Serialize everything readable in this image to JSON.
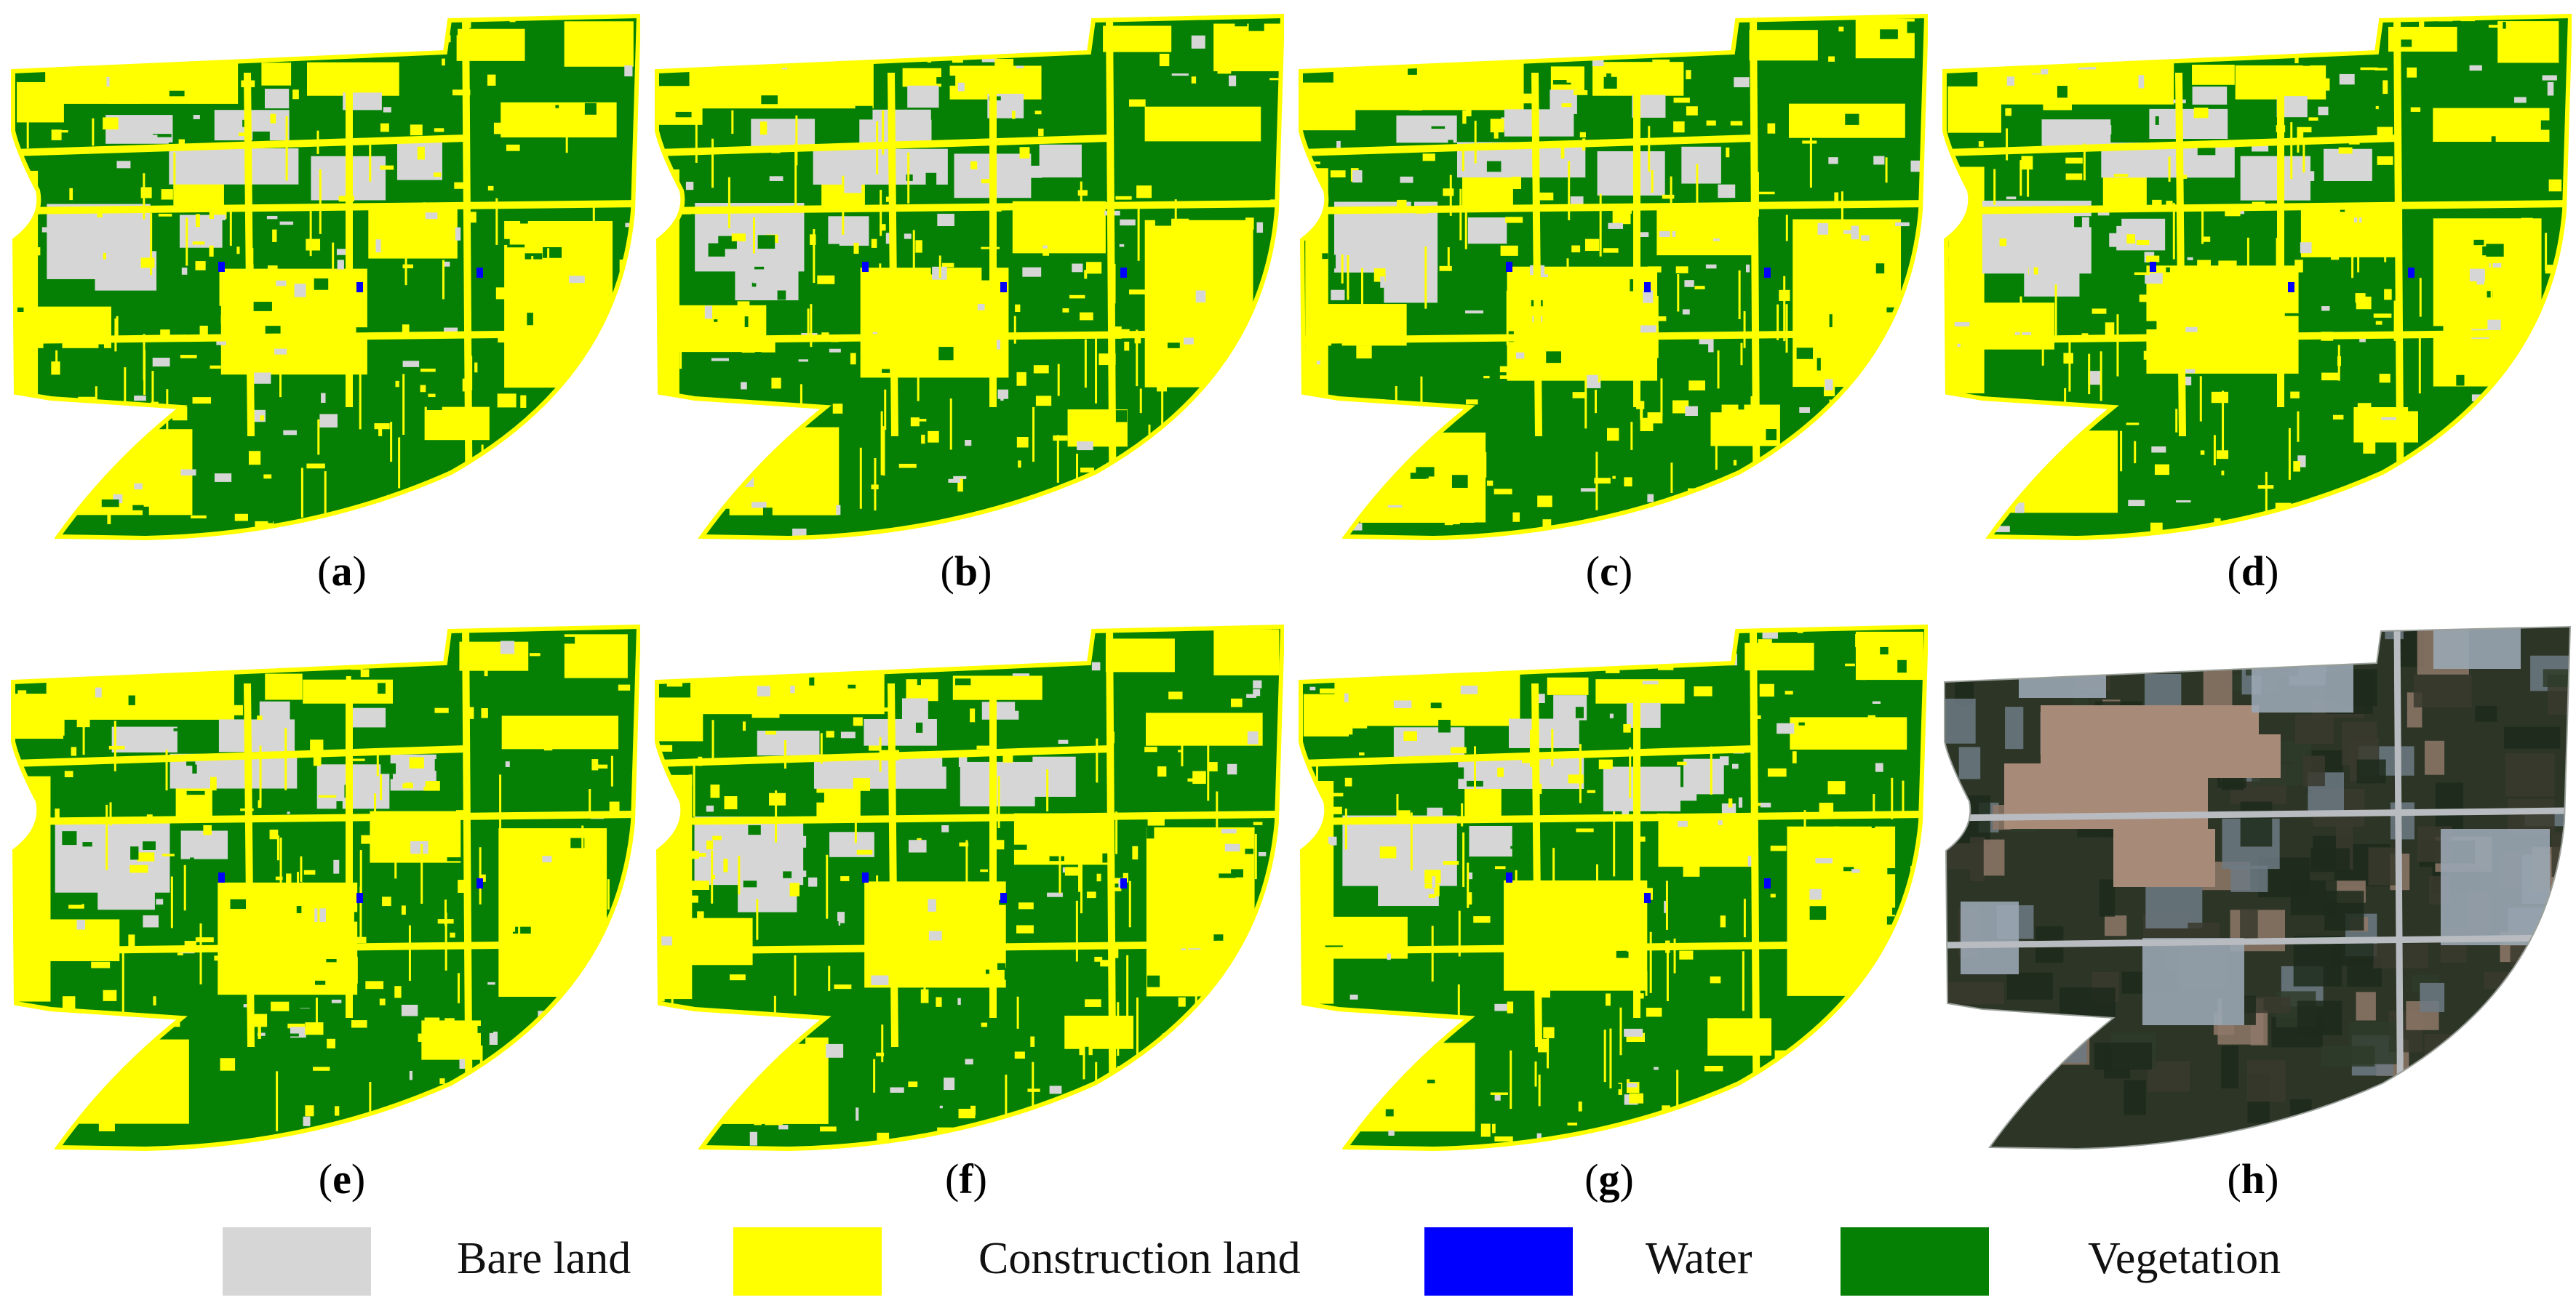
{
  "panels": [
    {
      "id": "a",
      "label": "a",
      "kind": "classification"
    },
    {
      "id": "b",
      "label": "b",
      "kind": "classification"
    },
    {
      "id": "c",
      "label": "c",
      "kind": "classification"
    },
    {
      "id": "d",
      "label": "d",
      "kind": "classification"
    },
    {
      "id": "e",
      "label": "e",
      "kind": "classification"
    },
    {
      "id": "f",
      "label": "f",
      "kind": "classification"
    },
    {
      "id": "g",
      "label": "g",
      "kind": "classification"
    },
    {
      "id": "h",
      "label": "h",
      "kind": "satellite"
    }
  ],
  "legend": [
    {
      "label": "Bare land",
      "color": "#d6d6d6"
    },
    {
      "label": "Construction land",
      "color": "#ffff00"
    },
    {
      "label": "Water",
      "color": "#0000ff"
    },
    {
      "label": "Vegetation",
      "color": "#058005"
    }
  ],
  "colors": {
    "bare": "#d6d6d6",
    "construction": "#ffff00",
    "water": "#0000ff",
    "vegetation": "#058005"
  }
}
